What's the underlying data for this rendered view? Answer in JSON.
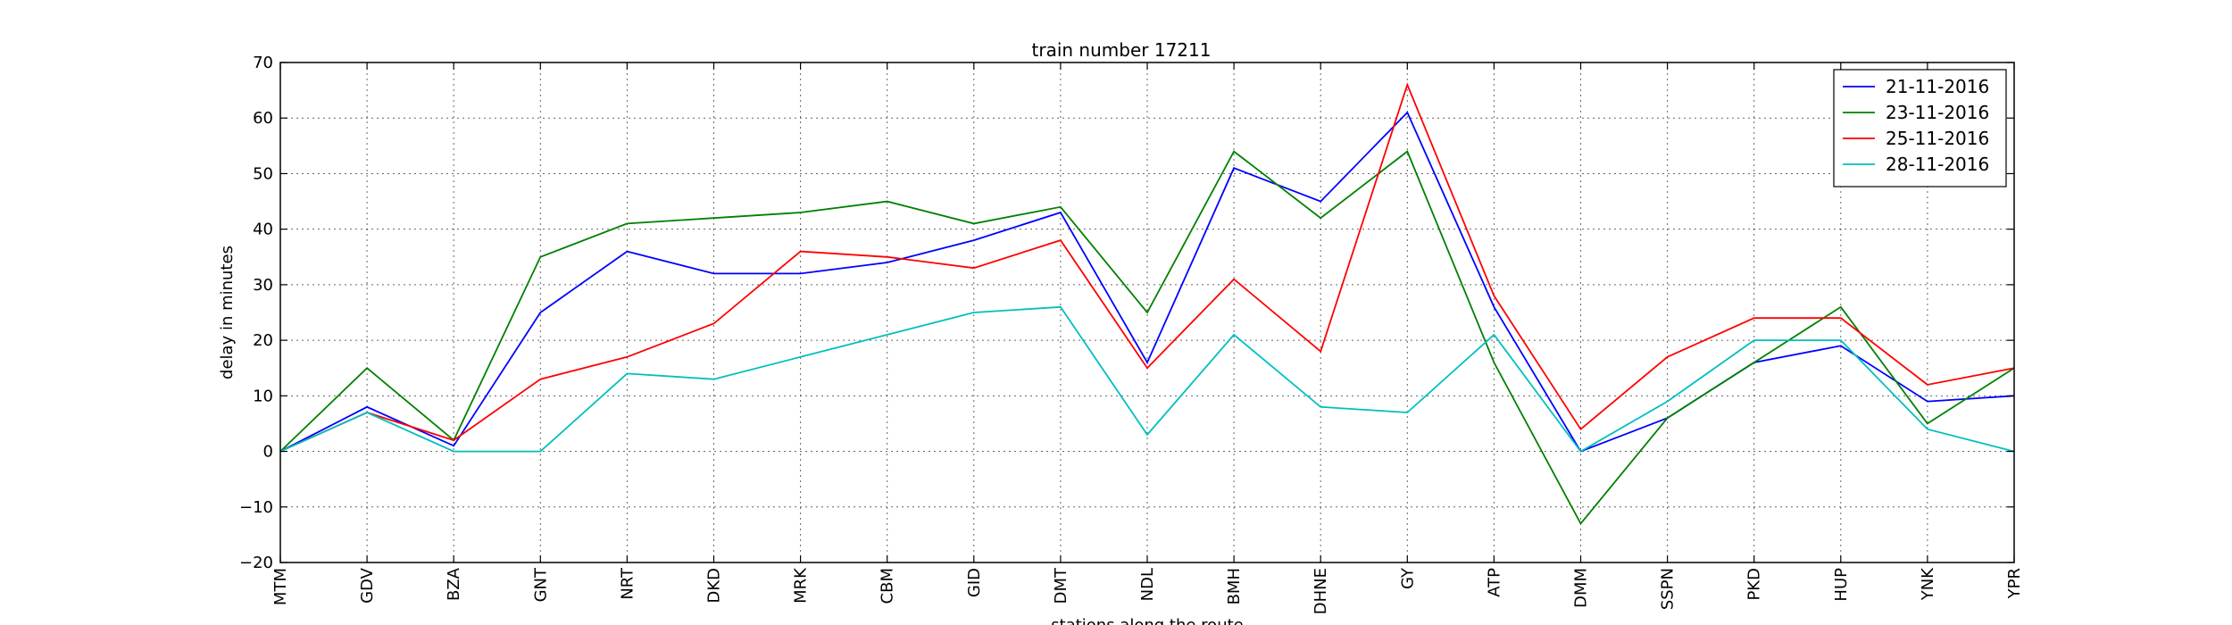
{
  "chart_data": {
    "type": "line",
    "title": "train number 17211",
    "xlabel": "stations along the route",
    "ylabel": "delay in minutes",
    "categories": [
      "MTM",
      "GDV",
      "BZA",
      "GNT",
      "NRT",
      "DKD",
      "MRK",
      "CBM",
      "GID",
      "DMT",
      "NDL",
      "BMH",
      "DHNE",
      "GY",
      "ATP",
      "DMM",
      "SSPN",
      "PKD",
      "HUP",
      "YNK",
      "YPR"
    ],
    "ylim": [
      -20,
      70
    ],
    "yticks": [
      -20,
      -10,
      0,
      10,
      20,
      30,
      40,
      50,
      60,
      70
    ],
    "grid": true,
    "legend_position": "top-right",
    "series": [
      {
        "name": "21-11-2016",
        "color": "#0000ff",
        "values": [
          0,
          8,
          1,
          25,
          36,
          32,
          32,
          34,
          38,
          43,
          16,
          51,
          45,
          61,
          26,
          0,
          6,
          16,
          19,
          9,
          10
        ]
      },
      {
        "name": "23-11-2016",
        "color": "#008000",
        "values": [
          0,
          15,
          2,
          35,
          41,
          42,
          43,
          45,
          41,
          44,
          25,
          54,
          42,
          54,
          16,
          -13,
          6,
          16,
          26,
          5,
          15
        ]
      },
      {
        "name": "25-11-2016",
        "color": "#ff0000",
        "values": [
          0,
          7,
          2,
          13,
          17,
          23,
          36,
          35,
          33,
          38,
          15,
          31,
          18,
          66,
          28,
          4,
          17,
          24,
          24,
          12,
          15
        ]
      },
      {
        "name": "28-11-2016",
        "color": "#00bfbf",
        "values": [
          0,
          7,
          0,
          0,
          14,
          13,
          17,
          21,
          25,
          26,
          3,
          21,
          8,
          7,
          21,
          0,
          9,
          20,
          20,
          4,
          0
        ]
      }
    ]
  }
}
